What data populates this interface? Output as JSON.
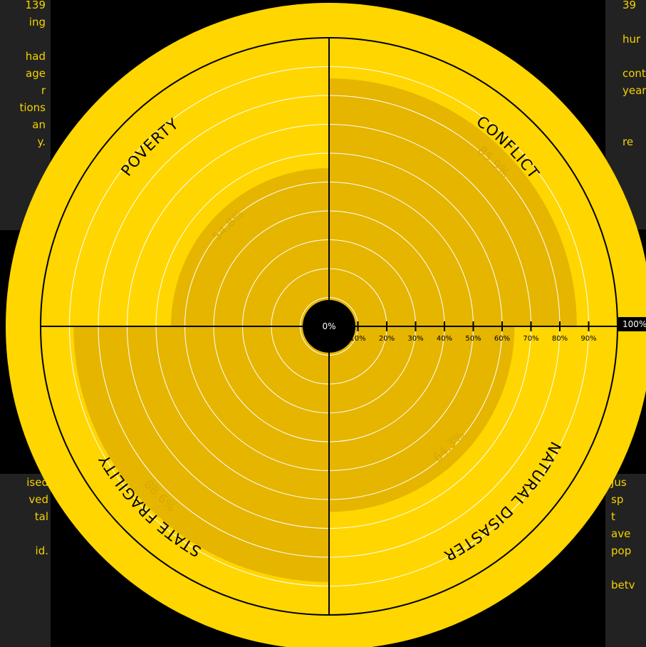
{
  "panels": {
    "top_left": [
      "139",
      "ing",
      "",
      "had",
      "age",
      "r",
      "tions",
      "an",
      "y."
    ],
    "top_right": [
      "39",
      "",
      "hur",
      "",
      "cont",
      "year",
      "",
      "",
      "re"
    ],
    "bottom_left": [
      "ised",
      "ved",
      "tal",
      "",
      "id."
    ],
    "bottom_right": [
      "Jus",
      "sp",
      "t",
      "ave",
      "pop",
      "",
      "betv"
    ]
  },
  "colors": {
    "background": "#000000",
    "ring": "#ffd600",
    "disc": "#ffd600",
    "wedge": "#e5b500",
    "gridline": "#ffffff",
    "axis": "#000000",
    "panel": "#222222",
    "panel_text": "#f5d200"
  },
  "chart_data": {
    "type": "polar-area",
    "categories": [
      "POVERTY",
      "CONFLICT",
      "NATURAL DISASTER",
      "STATE FRAGILITY"
    ],
    "values": [
      54.8,
      85.9,
      64.3,
      88.6
    ],
    "value_labels": [
      "54.8%",
      "85.9%",
      "64.3%",
      "88.6%"
    ],
    "rlim": [
      0,
      100
    ],
    "ticks": [
      10,
      20,
      30,
      40,
      50,
      60,
      70,
      80,
      90
    ],
    "tick_labels": [
      "10%",
      "20%",
      "30%",
      "40%",
      "50%",
      "60%",
      "70%",
      "80%",
      "90%"
    ],
    "center_label": "0%",
    "max_label": "100%",
    "grid": true
  }
}
